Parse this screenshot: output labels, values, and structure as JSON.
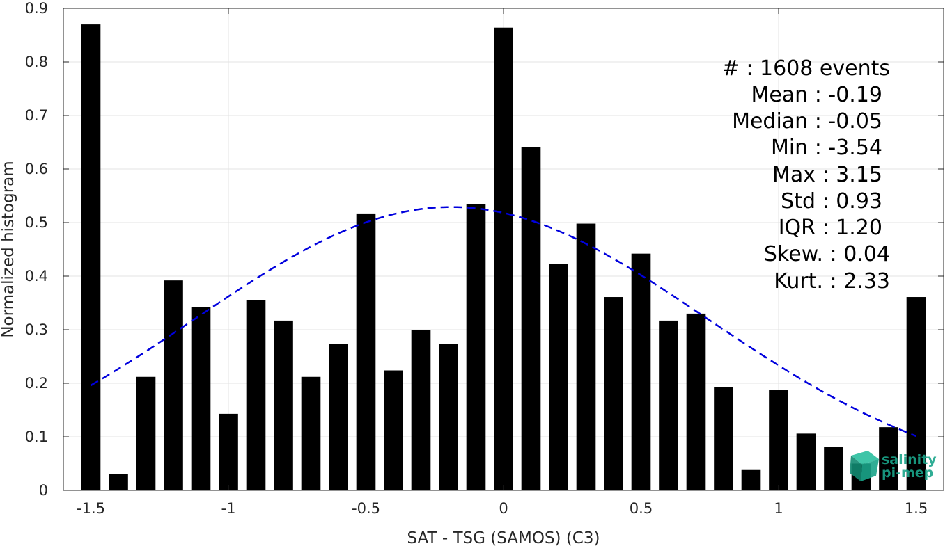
{
  "chart_data": {
    "type": "bar",
    "xlabel": "SAT - TSG (SAMOS) (C3)",
    "ylabel": "Normalized histogram",
    "xlim": [
      -1.6,
      1.6
    ],
    "ylim": [
      0,
      0.9
    ],
    "grid": true,
    "x_ticks": [
      "-1.5",
      "-1",
      "-0.5",
      "0",
      "0.5",
      "1",
      "1.5"
    ],
    "y_ticks": [
      "0",
      "0.1",
      "0.2",
      "0.3",
      "0.4",
      "0.5",
      "0.6",
      "0.7",
      "0.8",
      "0.9"
    ],
    "bar_width": 0.07,
    "bar_color": "#000000",
    "x": [
      -1.5,
      -1.4,
      -1.3,
      -1.2,
      -1.1,
      -1.0,
      -0.9,
      -0.8,
      -0.7,
      -0.6,
      -0.5,
      -0.4,
      -0.3,
      -0.2,
      -0.1,
      0.0,
      0.1,
      0.2,
      0.3,
      0.4,
      0.5,
      0.6,
      0.7,
      0.8,
      0.9,
      1.0,
      1.1,
      1.2,
      1.3,
      1.4,
      1.5
    ],
    "values": [
      0.87,
      0.031,
      0.212,
      0.392,
      0.342,
      0.143,
      0.355,
      0.317,
      0.212,
      0.274,
      0.517,
      0.224,
      0.299,
      0.274,
      0.535,
      0.864,
      0.641,
      0.423,
      0.498,
      0.361,
      0.442,
      0.317,
      0.33,
      0.193,
      0.038,
      0.187,
      0.106,
      0.081,
      0.05,
      0.118,
      0.361
    ],
    "fit_curve": {
      "type": "gaussian",
      "mean": -0.19,
      "std": 0.93,
      "color": "#0000dd",
      "style": "dashed",
      "x_range": [
        -1.5,
        1.5
      ],
      "peak": 0.529
    },
    "stats": [
      {
        "label": "#  : 1608 events"
      },
      {
        "label": "Mean : -0.19"
      },
      {
        "label": "Median : -0.05"
      },
      {
        "label": "Min : -3.54"
      },
      {
        "label": "Max : 3.15"
      },
      {
        "label": "Std : 0.93"
      },
      {
        "label": "IQR : 1.20"
      },
      {
        "label": "Skew. : 0.04"
      },
      {
        "label": "Kurt. : 2.33"
      }
    ]
  },
  "logo": {
    "line1": "salinity",
    "line2": "pi-mep",
    "color": "#1aa58a",
    "icon": "cube-logo-icon"
  }
}
